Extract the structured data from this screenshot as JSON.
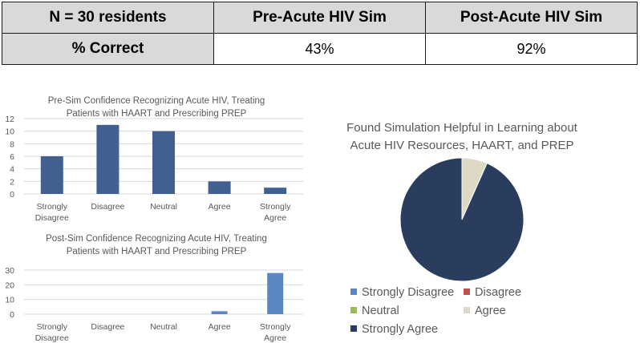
{
  "table": {
    "headers": [
      "N = 30 residents",
      "Pre-Acute HIV Sim",
      "Post-Acute HIV Sim"
    ],
    "row": {
      "label": "% Correct",
      "pre": "43%",
      "post": "92%"
    }
  },
  "colors": {
    "bar": "#41608f",
    "bar_post": "#5a86c6",
    "grid": "#d9d9d9",
    "axis_text": "#595959"
  },
  "chart_data": [
    {
      "type": "bar",
      "title_line1": "Pre-Sim Confidence Recognizing Acute HIV, Treating",
      "title_line2": "Patients with HAART and Prescribing PREP",
      "categories": [
        "Strongly Disagree",
        "Disagree",
        "Neutral",
        "Agree",
        "Strongly Agree"
      ],
      "category_lines": [
        [
          "Strongly",
          "Disagree"
        ],
        [
          "Disagree"
        ],
        [
          "Neutral"
        ],
        [
          "Agree"
        ],
        [
          "Strongly",
          "Agree"
        ]
      ],
      "values": [
        6,
        11,
        10,
        2,
        1
      ],
      "ylim": [
        0,
        12
      ],
      "yticks": [
        0,
        2,
        4,
        6,
        8,
        10,
        12
      ],
      "grid": true
    },
    {
      "type": "bar",
      "title_line1": "Post-Sim Confidence Recognizing Acute HIV, Treating",
      "title_line2": "Patients with HAART and Prescribing PREP",
      "categories": [
        "Strongly Disagree",
        "Disagree",
        "Neutral",
        "Agree",
        "Strongly Agree"
      ],
      "category_lines": [
        [
          "Strongly",
          "Disagree"
        ],
        [
          "Disagree"
        ],
        [
          "Neutral"
        ],
        [
          "Agree"
        ],
        [
          "Strongly",
          "Agree"
        ]
      ],
      "values": [
        0,
        0,
        0,
        2,
        28
      ],
      "ylim": [
        0,
        30
      ],
      "yticks": [
        0,
        10,
        20,
        30
      ],
      "grid": true
    },
    {
      "type": "pie",
      "title_line1": "Found Simulation Helpful in Learning about",
      "title_line2": "Acute HIV Resources, HAART, and PREP",
      "labels": [
        "Strongly Disagree",
        "Disagree",
        "Neutral",
        "Agree",
        "Strongly Agree"
      ],
      "values": [
        0,
        0,
        0,
        2,
        28
      ],
      "colors": [
        "#5a86c6",
        "#c0504d",
        "#9bbb59",
        "#ddd9c4",
        "#2b3d5e"
      ],
      "legend_position": "bottom"
    }
  ]
}
